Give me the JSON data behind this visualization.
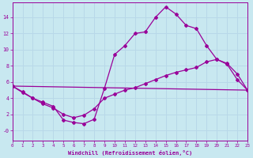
{
  "xlabel": "Windchill (Refroidissement éolien,°C)",
  "xlim": [
    0,
    23
  ],
  "ylim": [
    -1.2,
    15.8
  ],
  "xticks": [
    0,
    1,
    2,
    3,
    4,
    5,
    6,
    7,
    8,
    9,
    10,
    11,
    12,
    13,
    14,
    15,
    16,
    17,
    18,
    19,
    20,
    21,
    22,
    23
  ],
  "yticks": [
    0,
    2,
    4,
    6,
    8,
    10,
    12,
    14
  ],
  "ytick_labels": [
    "-0",
    "2",
    "4",
    "6",
    "8",
    "10",
    "12",
    "14"
  ],
  "background_color": "#c8e8f0",
  "line_color": "#990099",
  "grid_color": "#b8d8e8",
  "line1_x": [
    0,
    1,
    2,
    3,
    4,
    5,
    6,
    7,
    8,
    9,
    10,
    11,
    12,
    13,
    14,
    15,
    16,
    17,
    18,
    19,
    20,
    21,
    22,
    23
  ],
  "line1_y": [
    5.5,
    4.8,
    4.0,
    3.5,
    3.0,
    1.3,
    1.0,
    0.85,
    1.4,
    5.2,
    9.4,
    10.5,
    12.0,
    12.2,
    14.0,
    15.3,
    14.4,
    13.0,
    12.6,
    10.5,
    8.8,
    8.2,
    6.3,
    5.0
  ],
  "line2_x": [
    0,
    1,
    2,
    3,
    4,
    5,
    6,
    7,
    8,
    9,
    10,
    11,
    12,
    13,
    14,
    15,
    16,
    17,
    18,
    19,
    20,
    21,
    22,
    23
  ],
  "line2_y": [
    5.5,
    4.7,
    4.0,
    3.3,
    2.8,
    2.0,
    1.6,
    1.9,
    2.7,
    4.0,
    4.5,
    5.0,
    5.3,
    5.8,
    6.3,
    6.8,
    7.2,
    7.5,
    7.8,
    8.5,
    8.8,
    8.3,
    7.0,
    5.0
  ],
  "line3_x": [
    0,
    23
  ],
  "line3_y": [
    5.5,
    5.0
  ]
}
